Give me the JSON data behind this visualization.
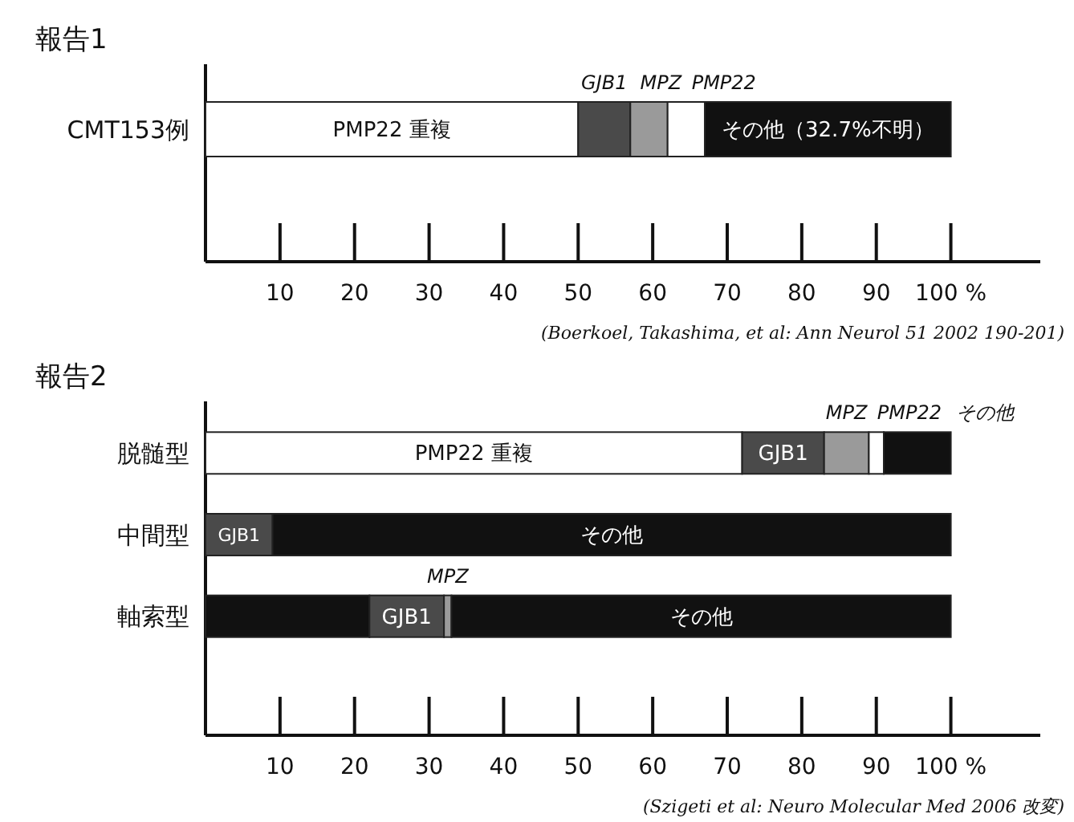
{
  "chart_data": [
    {
      "type": "bar",
      "orientation": "horizontal",
      "stacked": true,
      "title": "報告1",
      "categories": [
        "CMT153例"
      ],
      "xlim": [
        0,
        112
      ],
      "xticks": [
        10,
        20,
        30,
        40,
        50,
        60,
        70,
        80,
        90,
        {
          "value": 100,
          "label": "100 %"
        }
      ],
      "grid": false,
      "legend": false,
      "series": [
        {
          "name": "PMP22 重複",
          "color": "#ffffff",
          "values": [
            50
          ]
        },
        {
          "name": "GJB1",
          "color": "#4a4a4a",
          "values": [
            7
          ]
        },
        {
          "name": "MPZ",
          "color": "#9a9a9a",
          "values": [
            5
          ]
        },
        {
          "name": "PMP22",
          "color": "#ffffff",
          "values": [
            5
          ]
        },
        {
          "name": "その他（32.7%不明）",
          "color": "#111111",
          "values": [
            33
          ]
        }
      ],
      "annotations": [
        "(Boerkoel, Takashima, et al: Ann Neurol 51 2002 190-201)"
      ]
    },
    {
      "type": "bar",
      "orientation": "horizontal",
      "stacked": true,
      "title": "報告2",
      "categories": [
        "脱髄型",
        "中間型",
        "軸索型"
      ],
      "xlim": [
        0,
        112
      ],
      "xticks": [
        10,
        20,
        30,
        40,
        50,
        60,
        70,
        80,
        90,
        {
          "value": 100,
          "label": "100 %"
        }
      ],
      "grid": false,
      "legend": false,
      "series": [
        {
          "color": "#111111",
          "values": [
            null,
            null,
            22
          ]
        },
        {
          "name": "PMP22 重複",
          "color": "#ffffff",
          "values": [
            72,
            null,
            null
          ]
        },
        {
          "name": "GJB1",
          "color": "#4a4a4a",
          "values": [
            11,
            9,
            10
          ]
        },
        {
          "name": "MPZ",
          "color": "#9a9a9a",
          "values": [
            6,
            null,
            1
          ]
        },
        {
          "name": "PMP22",
          "color": "#ffffff",
          "values": [
            2,
            null,
            null
          ]
        },
        {
          "name": "その他",
          "color": "#111111",
          "values": [
            9,
            91,
            67
          ]
        }
      ],
      "annotations": [
        "(Szigeti et al: Neuro Molecular Med 2006 改変)"
      ]
    }
  ]
}
